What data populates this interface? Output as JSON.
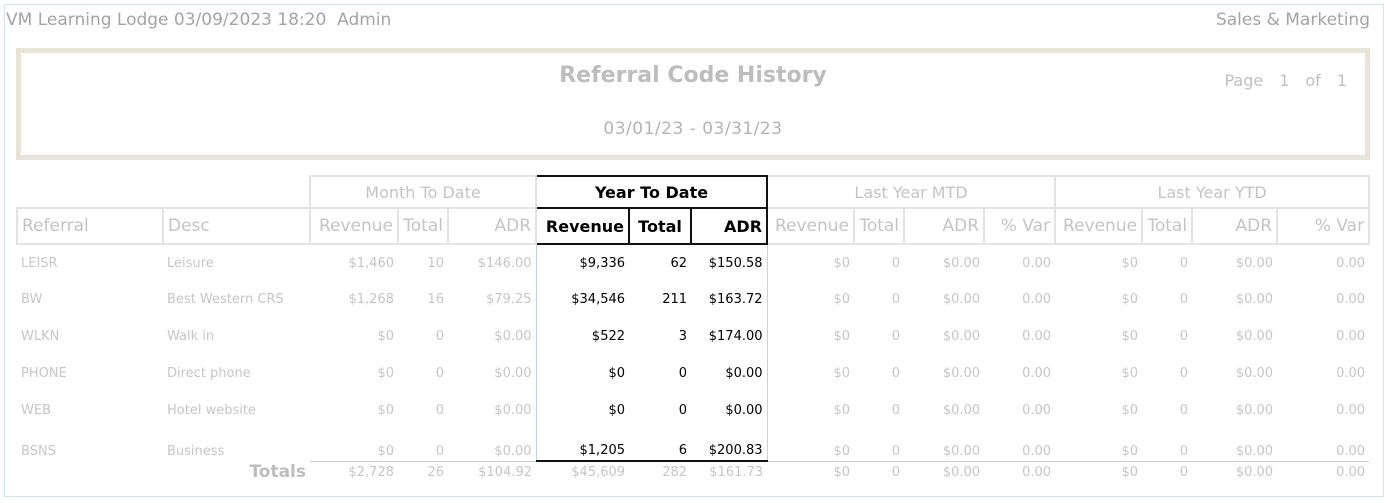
{
  "topbar": {
    "left": "VM Learning Lodge 03/09/2023 18:20  Admin",
    "right": "Sales & Marketing"
  },
  "report": {
    "title": "Referral Code History",
    "date_range": "03/01/23 - 03/31/23",
    "page_label": "Page",
    "page_current": "1",
    "page_of": "of",
    "page_total": "1"
  },
  "groups": {
    "mtd": "Month To Date",
    "ytd": "Year To Date",
    "ly_mtd": "Last Year MTD",
    "ly_ytd": "Last Year YTD"
  },
  "columns": {
    "referral": "Referral",
    "desc": "Desc",
    "revenue": "Revenue",
    "total": "Total",
    "adr": "ADR",
    "var": "% Var"
  },
  "rows": [
    {
      "code": "LEISR",
      "desc": "Leisure",
      "mtd": [
        "$1,460",
        "10",
        "$146.00"
      ],
      "ytd": [
        "$9,336",
        "62",
        "$150.58"
      ],
      "ly_mtd": [
        "$0",
        "0",
        "$0.00",
        "0.00"
      ],
      "ly_ytd": [
        "$0",
        "0",
        "$0.00",
        "0.00"
      ]
    },
    {
      "code": "BW",
      "desc": "Best Western CRS",
      "mtd": [
        "$1,268",
        "16",
        "$79.25"
      ],
      "ytd": [
        "$34,546",
        "211",
        "$163.72"
      ],
      "ly_mtd": [
        "$0",
        "0",
        "$0.00",
        "0.00"
      ],
      "ly_ytd": [
        "$0",
        "0",
        "$0.00",
        "0.00"
      ]
    },
    {
      "code": "WLKN",
      "desc": "Walk in",
      "mtd": [
        "$0",
        "0",
        "$0.00"
      ],
      "ytd": [
        "$522",
        "3",
        "$174.00"
      ],
      "ly_mtd": [
        "$0",
        "0",
        "$0.00",
        "0.00"
      ],
      "ly_ytd": [
        "$0",
        "0",
        "$0.00",
        "0.00"
      ]
    },
    {
      "code": "PHONE",
      "desc": "Direct phone",
      "mtd": [
        "$0",
        "0",
        "$0.00"
      ],
      "ytd": [
        "$0",
        "0",
        "$0.00"
      ],
      "ly_mtd": [
        "$0",
        "0",
        "$0.00",
        "0.00"
      ],
      "ly_ytd": [
        "$0",
        "0",
        "$0.00",
        "0.00"
      ]
    },
    {
      "code": "WEB",
      "desc": "Hotel website",
      "mtd": [
        "$0",
        "0",
        "$0.00"
      ],
      "ytd": [
        "$0",
        "0",
        "$0.00"
      ],
      "ly_mtd": [
        "$0",
        "0",
        "$0.00",
        "0.00"
      ],
      "ly_ytd": [
        "$0",
        "0",
        "$0.00",
        "0.00"
      ]
    },
    {
      "code": "BSNS",
      "desc": "Business",
      "mtd": [
        "$0",
        "0",
        "$0.00"
      ],
      "ytd": [
        "$1,205",
        "6",
        "$200.83"
      ],
      "ly_mtd": [
        "$0",
        "0",
        "$0.00",
        "0.00"
      ],
      "ly_ytd": [
        "$0",
        "0",
        "$0.00",
        "0.00"
      ]
    }
  ],
  "totals": {
    "label": "Totals",
    "mtd": [
      "$2,728",
      "26",
      "$104.92"
    ],
    "ytd": [
      "$45,609",
      "282",
      "$161.73"
    ],
    "ly_mtd": [
      "$0",
      "0",
      "$0.00",
      "0.00"
    ],
    "ly_ytd": [
      "$0",
      "0",
      "$0.00",
      "0.00"
    ]
  }
}
